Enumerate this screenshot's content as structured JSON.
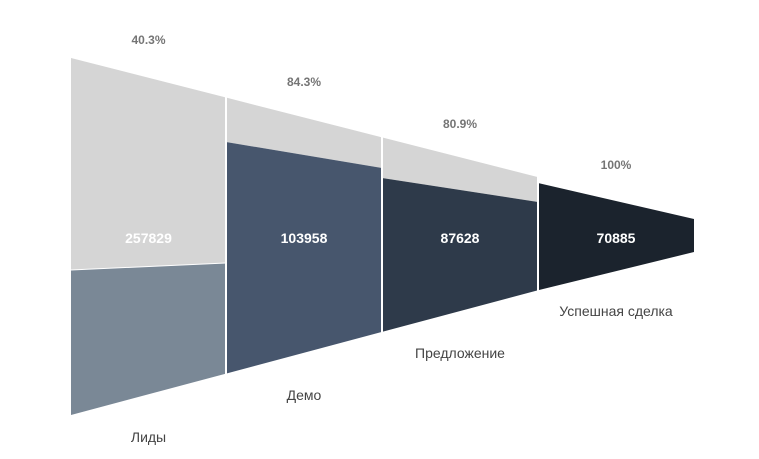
{
  "chart_data": {
    "type": "funnel",
    "categories": [
      "Лиды",
      "Демо",
      "Предложение",
      "Успешная сделка"
    ],
    "values": [
      257829,
      103958,
      87628,
      70885
    ],
    "value_labels": [
      "257829",
      "103958",
      "87628",
      "70885"
    ],
    "conversion_labels": [
      "40.3%",
      "84.3%",
      "80.9%",
      "100%"
    ],
    "colors": [
      "#7a8896",
      "#47566d",
      "#2e3a4a",
      "#1b232d"
    ],
    "remainder_color": "#d5d5d5"
  }
}
